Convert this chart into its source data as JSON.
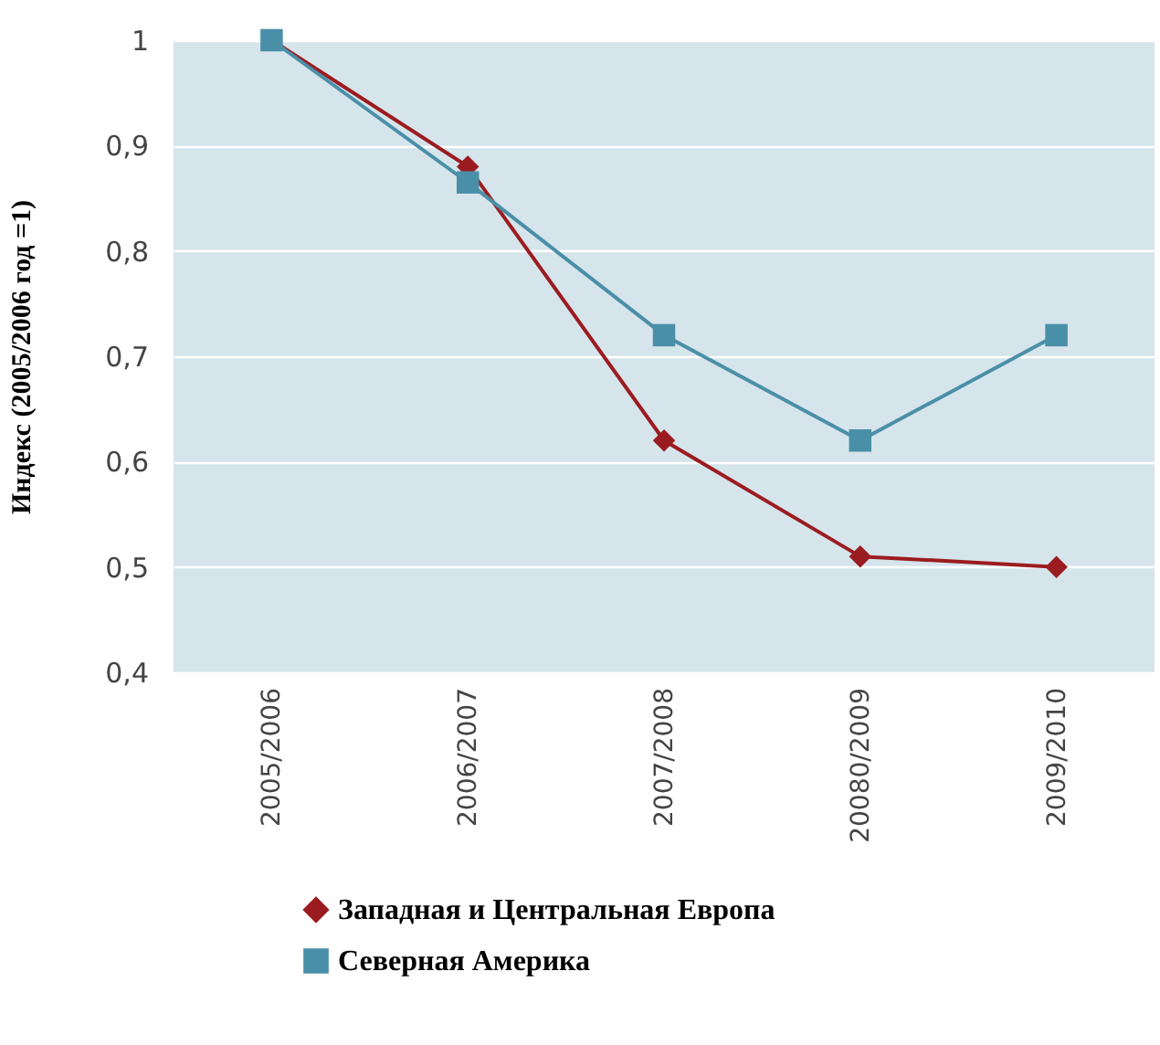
{
  "chart_data": {
    "type": "line",
    "ylabel": "Индекс (2005/2006 год =1)",
    "categories": [
      "2005/2006",
      "2006/2007",
      "2007/2008",
      "20080/2009",
      "2009/2010"
    ],
    "series": [
      {
        "name": "Западная и Центральная Европа",
        "color": "#9b1c20",
        "marker": "diamond",
        "values": [
          1,
          0.88,
          0.62,
          0.51,
          0.5
        ]
      },
      {
        "name": "Северная Америка",
        "color": "#4a8fa8",
        "marker": "square",
        "values": [
          1,
          0.865,
          0.72,
          0.62,
          0.72
        ]
      }
    ],
    "ylim": [
      0.4,
      1
    ],
    "yticks": [
      {
        "value": 0.4,
        "label": "0,4"
      },
      {
        "value": 0.5,
        "label": "0,5"
      },
      {
        "value": 0.6,
        "label": "0,6"
      },
      {
        "value": 0.7,
        "label": "0,7"
      },
      {
        "value": 0.8,
        "label": "0,8"
      },
      {
        "value": 0.9,
        "label": "0,9"
      },
      1
    ],
    "grid": "y",
    "legend": "bottom",
    "line_style": "solid"
  }
}
